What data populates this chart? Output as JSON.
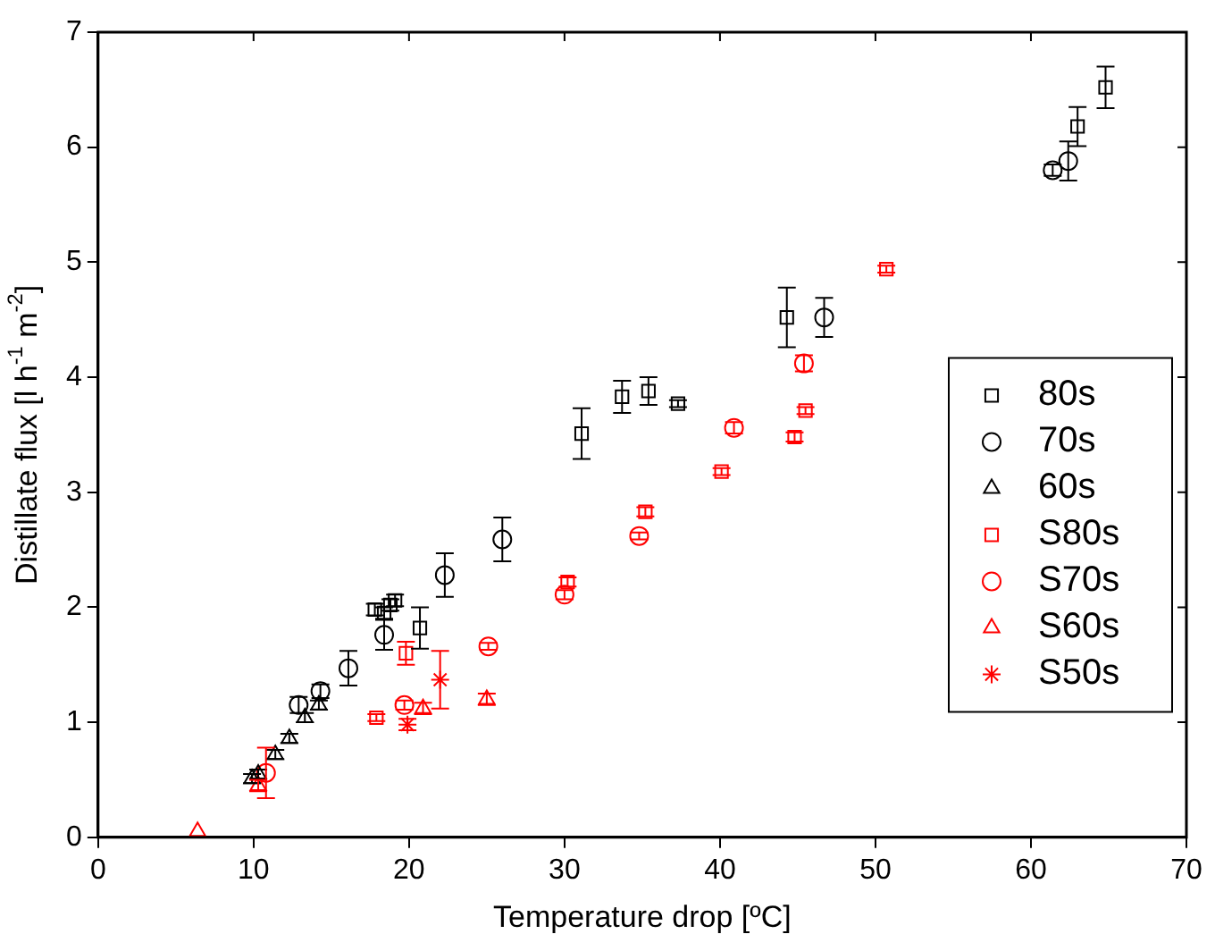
{
  "chart_data": {
    "type": "scatter",
    "xlabel": "Temperature drop [ºC]",
    "ylabel": "Distillate flux [l h$^{-1}$ m$^{-2}$]",
    "xlim": [
      0,
      70
    ],
    "xticks": [
      0,
      10,
      20,
      30,
      40,
      50,
      60,
      70
    ],
    "ylim": [
      0,
      7
    ],
    "yticks": [
      0,
      1,
      2,
      3,
      4,
      5,
      6,
      7
    ],
    "grid": false,
    "legend": "right",
    "series": [
      {
        "name": "80s",
        "color": "#000000",
        "marker": "square",
        "x": [
          17.8,
          18.4,
          18.8,
          19.1,
          20.7,
          31.1,
          33.7,
          35.4,
          37.3,
          44.3,
          63.0,
          64.8
        ],
        "values": [
          1.98,
          1.95,
          2.02,
          2.06,
          1.82,
          3.51,
          3.83,
          3.88,
          3.77,
          4.52,
          6.18,
          6.52
        ],
        "errors": [
          0.05,
          0.05,
          0.05,
          0.05,
          0.18,
          0.22,
          0.14,
          0.12,
          0.03,
          0.26,
          0.17,
          0.18
        ]
      },
      {
        "name": "70s",
        "color": "#000000",
        "marker": "circle",
        "x": [
          12.9,
          14.3,
          16.1,
          18.4,
          22.3,
          26.0,
          46.7,
          61.4,
          62.4
        ],
        "values": [
          1.15,
          1.27,
          1.47,
          1.76,
          2.28,
          2.59,
          4.52,
          5.8,
          5.88
        ],
        "errors": [
          0.07,
          0.06,
          0.15,
          0.13,
          0.19,
          0.19,
          0.17,
          0.05,
          0.17
        ]
      },
      {
        "name": "60s",
        "color": "#000000",
        "marker": "triangle",
        "x": [
          9.9,
          10.3,
          11.4,
          12.3,
          13.3,
          14.2
        ],
        "values": [
          0.51,
          0.55,
          0.72,
          0.86,
          1.04,
          1.15
        ],
        "errors": [
          0.04,
          0.04,
          0.04,
          0.04,
          0.04,
          0.04
        ]
      },
      {
        "name": "S80s",
        "color": "#ff0000",
        "marker": "square",
        "x": [
          17.9,
          19.8,
          30.2,
          35.2,
          40.1,
          44.8,
          45.5,
          50.7
        ],
        "values": [
          1.04,
          1.6,
          2.22,
          2.83,
          3.18,
          3.48,
          3.71,
          4.94
        ],
        "errors": [
          0.03,
          0.1,
          0.04,
          0.04,
          0.03,
          0.04,
          0.03,
          0.03
        ]
      },
      {
        "name": "S70s",
        "color": "#ff0000",
        "marker": "circle",
        "x": [
          10.8,
          19.7,
          25.1,
          30.0,
          34.8,
          40.9,
          45.4
        ],
        "values": [
          0.56,
          1.15,
          1.66,
          2.11,
          2.62,
          3.56,
          4.12
        ],
        "errors": [
          0.22,
          0.04,
          0.03,
          0.04,
          0.03,
          0.05,
          0.07
        ]
      },
      {
        "name": "S60s",
        "color": "#ff0000",
        "marker": "triangle",
        "x": [
          6.4,
          10.3,
          20.9,
          25.0
        ],
        "values": [
          0.05,
          0.45,
          1.12,
          1.2
        ],
        "errors": [
          null,
          0.05,
          0.05,
          0.05
        ]
      },
      {
        "name": "S50s",
        "color": "#ff0000",
        "marker": "cross",
        "x": [
          19.9,
          22.0
        ],
        "values": [
          0.98,
          1.37
        ],
        "errors": [
          0.05,
          0.25
        ]
      }
    ]
  }
}
